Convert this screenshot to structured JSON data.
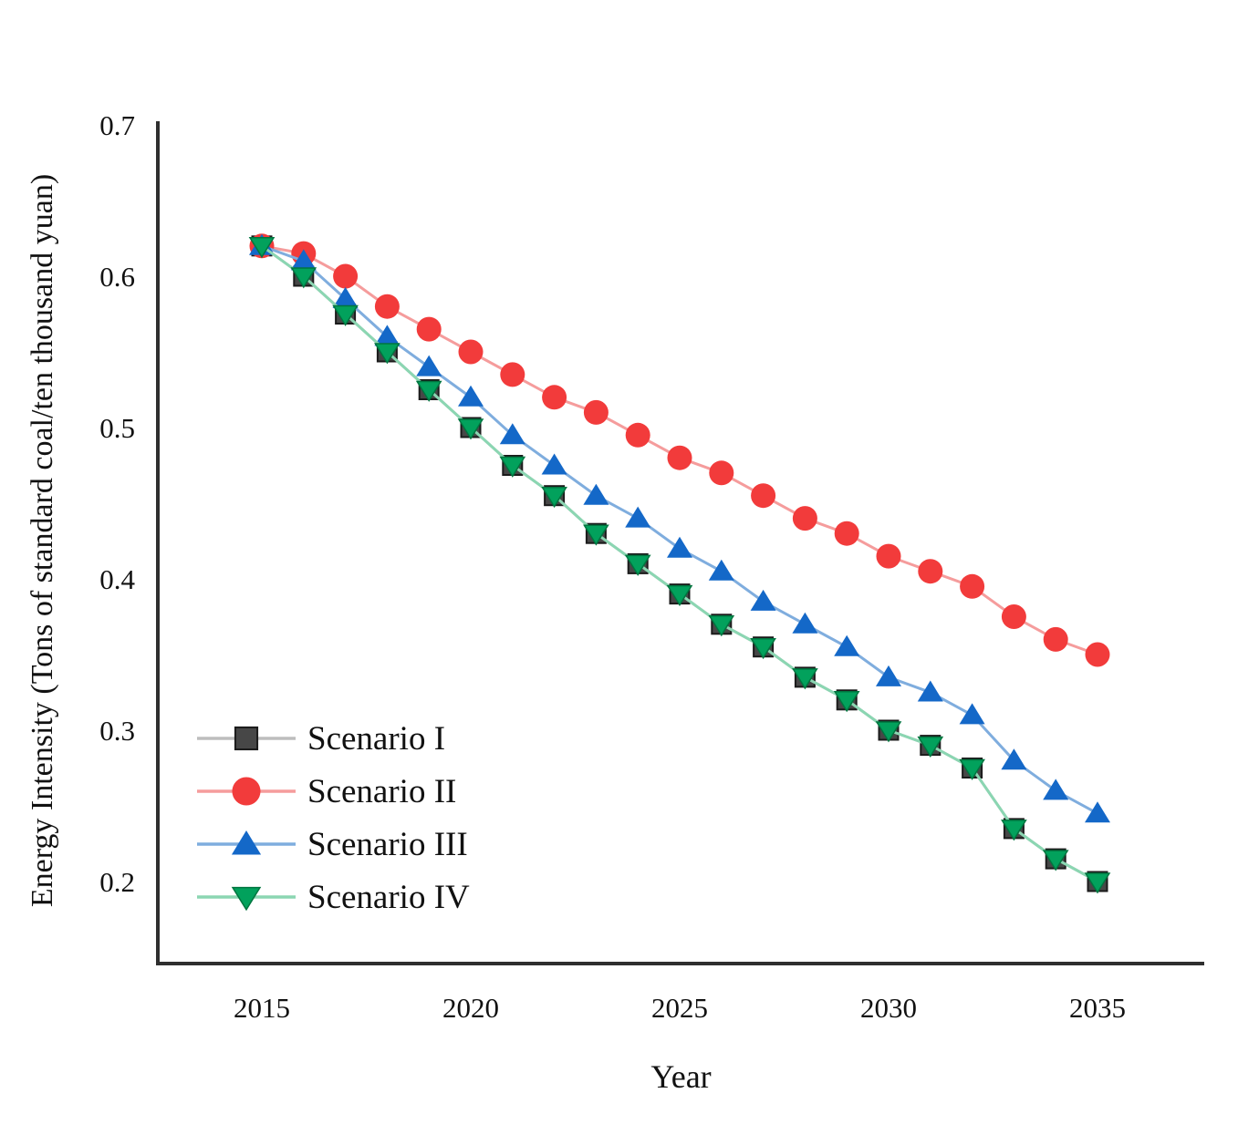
{
  "chart_data": {
    "type": "line",
    "title": "",
    "xlabel": "Year",
    "ylabel": "Energy Intensity (Tons of standard coal/ten thousand yuan)",
    "x": [
      2015,
      2016,
      2017,
      2018,
      2019,
      2020,
      2021,
      2022,
      2023,
      2024,
      2025,
      2026,
      2027,
      2028,
      2029,
      2030,
      2031,
      2032,
      2033,
      2034,
      2035
    ],
    "x_tick_labels": [
      "2015",
      "2020",
      "2025",
      "2030",
      "2035"
    ],
    "y_tick_labels": [
      "0.7",
      "0.6",
      "0.5",
      "0.4",
      "0.3",
      "0.2"
    ],
    "xlim": [
      2012.5,
      2037.5
    ],
    "ylim": [
      0.15,
      0.7
    ],
    "grid": false,
    "legend_position": "inside-lower-left",
    "series": [
      {
        "name": "Scenario I",
        "marker": "square",
        "marker_color": "#474747",
        "marker_edge": "#1b1b1b",
        "line_color": "#bdbdbd",
        "values": [
          0.62,
          0.6,
          0.575,
          0.55,
          0.525,
          0.5,
          0.475,
          0.455,
          0.43,
          0.41,
          0.39,
          0.37,
          0.355,
          0.335,
          0.32,
          0.3,
          0.29,
          0.275,
          0.235,
          0.215,
          0.2
        ]
      },
      {
        "name": "Scenario II",
        "marker": "circle",
        "marker_color": "#f23b3b",
        "marker_edge": "#f23b3b",
        "line_color": "#f59c9c",
        "values": [
          0.62,
          0.615,
          0.6,
          0.58,
          0.565,
          0.55,
          0.535,
          0.52,
          0.51,
          0.495,
          0.48,
          0.47,
          0.455,
          0.44,
          0.43,
          0.415,
          0.405,
          0.395,
          0.375,
          0.36,
          0.35
        ]
      },
      {
        "name": "Scenario III",
        "marker": "triangle-up",
        "marker_color": "#1468c8",
        "marker_edge": "#1468c8",
        "line_color": "#7fadde",
        "values": [
          0.62,
          0.61,
          0.585,
          0.56,
          0.54,
          0.52,
          0.495,
          0.475,
          0.455,
          0.44,
          0.42,
          0.405,
          0.385,
          0.37,
          0.355,
          0.335,
          0.325,
          0.31,
          0.28,
          0.26,
          0.245
        ]
      },
      {
        "name": "Scenario IV",
        "marker": "triangle-down",
        "marker_color": "#02a15c",
        "marker_edge": "#00753f",
        "line_color": "#8bd6b2",
        "values": [
          0.62,
          0.6,
          0.575,
          0.55,
          0.525,
          0.5,
          0.475,
          0.455,
          0.43,
          0.41,
          0.39,
          0.37,
          0.355,
          0.335,
          0.32,
          0.3,
          0.29,
          0.275,
          0.235,
          0.215,
          0.2
        ]
      }
    ]
  },
  "style": {
    "axis_color": "#2f2f2f",
    "text_color": "#111111"
  }
}
